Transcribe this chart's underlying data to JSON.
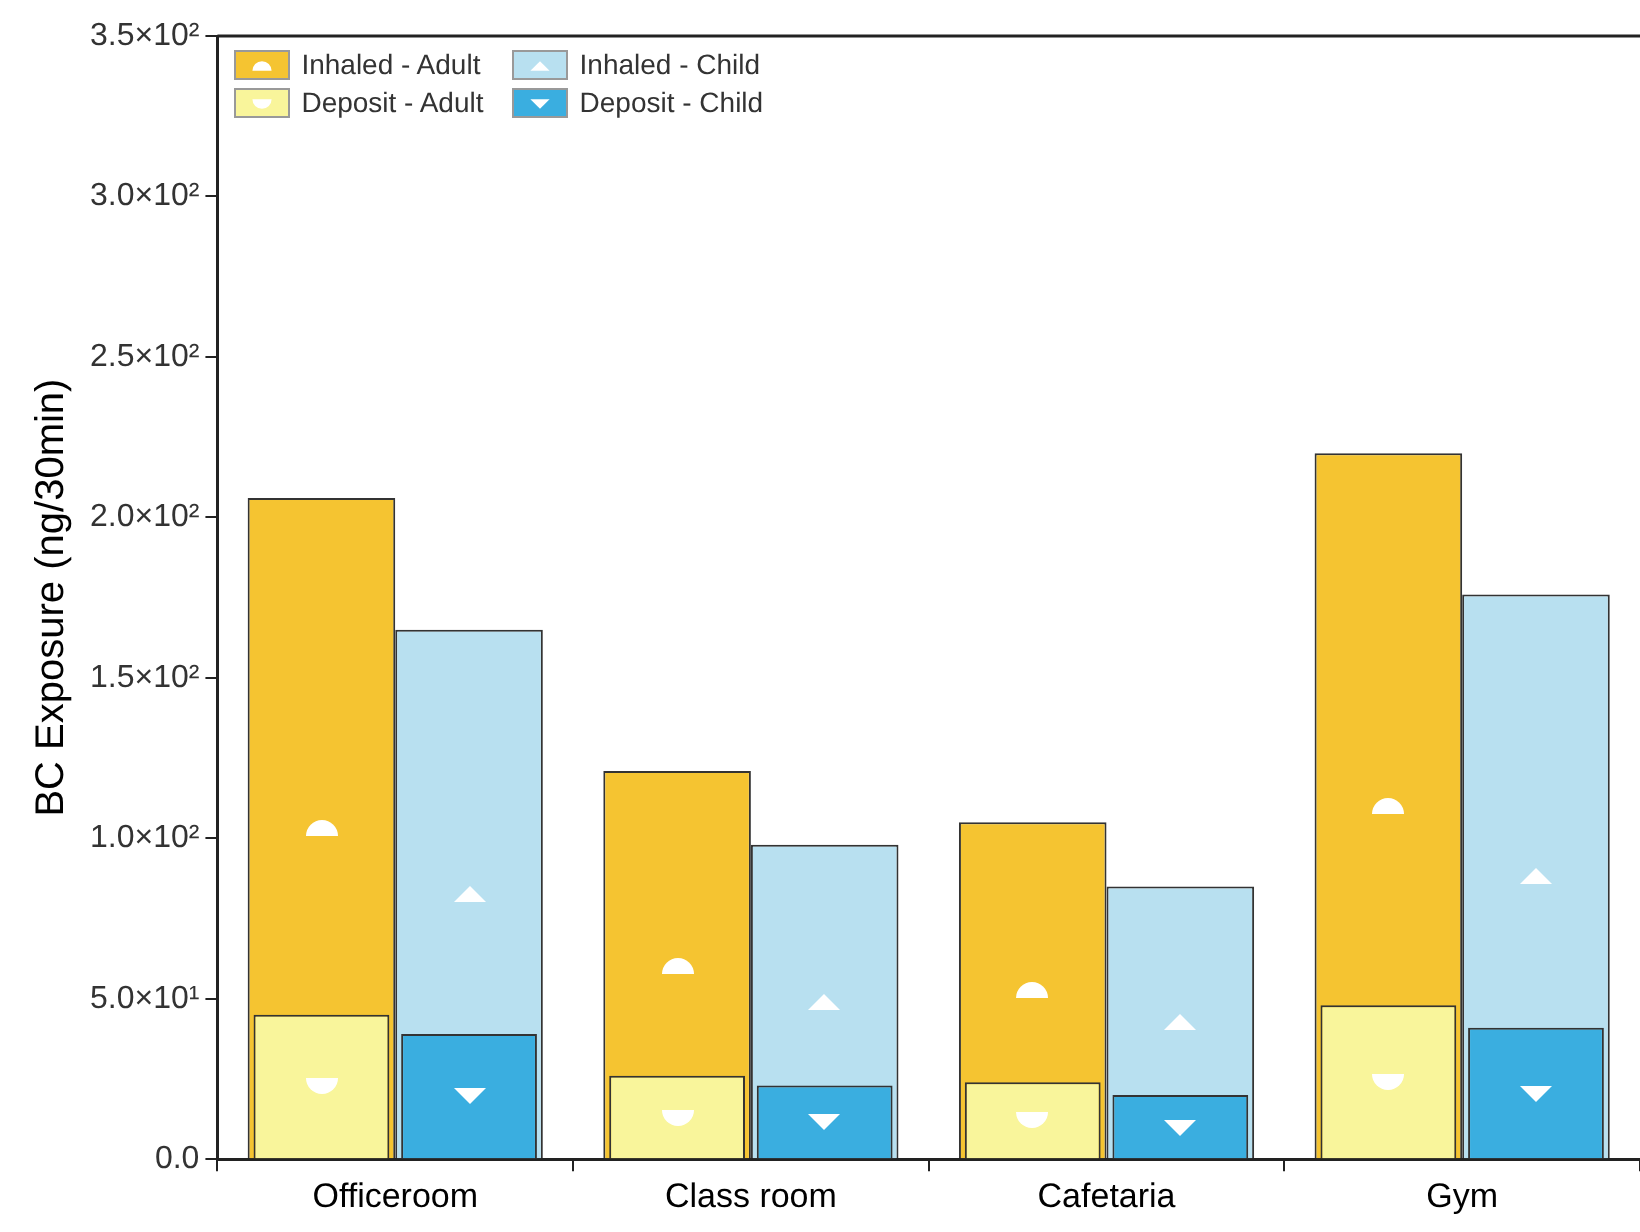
{
  "chart_data": {
    "type": "bar",
    "ylabel": "BC Exposure (ng/30min)",
    "categories": [
      "Officeroom",
      "Class room",
      "Cafetaria",
      "Gym"
    ],
    "series": [
      {
        "name": "Inhaled - Adult",
        "color": "#f5c431",
        "values": [
          206,
          121,
          105,
          220
        ]
      },
      {
        "name": "Deposit - Adult",
        "color": "#f9f59b",
        "values": [
          45,
          26,
          24,
          48
        ]
      },
      {
        "name": "Inhaled - Child",
        "color": "#b8e0f0",
        "values": [
          165,
          98,
          85,
          176
        ]
      },
      {
        "name": "Deposit - Child",
        "color": "#3aaee0",
        "values": [
          39,
          23,
          20,
          41
        ]
      }
    ],
    "ylim": [
      0,
      350
    ],
    "yticks": [
      {
        "value": 0,
        "label": "0.0"
      },
      {
        "value": 50,
        "label": "5.0×10¹"
      },
      {
        "value": 100,
        "label": "1.0×10²"
      },
      {
        "value": 150,
        "label": "1.5×10²"
      },
      {
        "value": 200,
        "label": "2.0×10²"
      },
      {
        "value": 250,
        "label": "2.5×10²"
      },
      {
        "value": 300,
        "label": "3.0×10²"
      },
      {
        "value": 350,
        "label": "3.5×10²"
      }
    ],
    "grid": false,
    "legend": "top left"
  }
}
